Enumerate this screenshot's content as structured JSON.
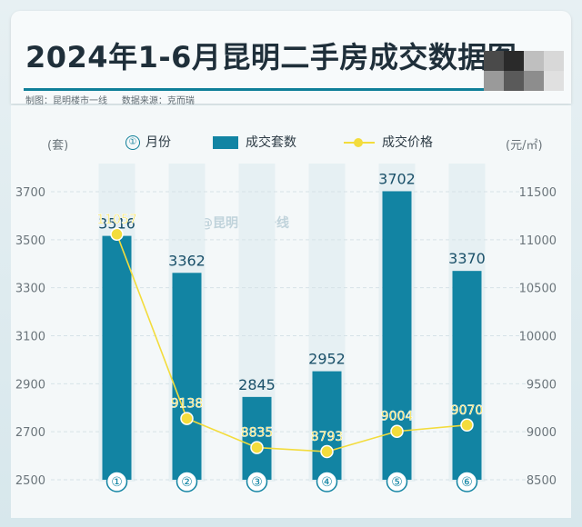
{
  "title": "2024年1-6月昆明二手房成交数据图",
  "subtitle": {
    "maker_label": "制图：",
    "maker": "昆明楼市一线",
    "source_label": "数据来源：",
    "source": "克而瑞"
  },
  "legend": {
    "month": "月份",
    "month_icon_text": "①",
    "bars": "成交套数",
    "line": "成交价格"
  },
  "watermark": "@昆明楼市一线",
  "colors": {
    "bar": "#1284a3",
    "line": "#f3dc3c",
    "text_dark": "#2d3b45",
    "axis_text": "#6b757b",
    "value_label": "#1a5069",
    "price_label": "#f3dc3c"
  },
  "chart_data": {
    "type": "bar",
    "categories": [
      "①",
      "②",
      "③",
      "④",
      "⑤",
      "⑥"
    ],
    "series": [
      {
        "name": "成交套数",
        "type": "bar",
        "axis": "left",
        "values": [
          3516,
          3362,
          2845,
          2952,
          3702,
          3370
        ]
      },
      {
        "name": "成交价格",
        "type": "line",
        "axis": "right",
        "values": [
          11057,
          9138,
          8835,
          8793,
          9004,
          9070
        ]
      }
    ],
    "title": "2024年1-6月昆明二手房成交数据图",
    "ylabel_left": "(套)",
    "ylabel_right": "(元/㎡)",
    "ylim_left": [
      2500,
      3700
    ],
    "ylim_right": [
      8500,
      11500
    ],
    "yticks_left": [
      "2500",
      "2700",
      "2900",
      "3100",
      "3300",
      "3500",
      "3700"
    ],
    "yticks_right": [
      "8500",
      "9000",
      "9500",
      "10000",
      "10500",
      "11000",
      "11500"
    ],
    "grid": true,
    "legend_position": "top"
  }
}
